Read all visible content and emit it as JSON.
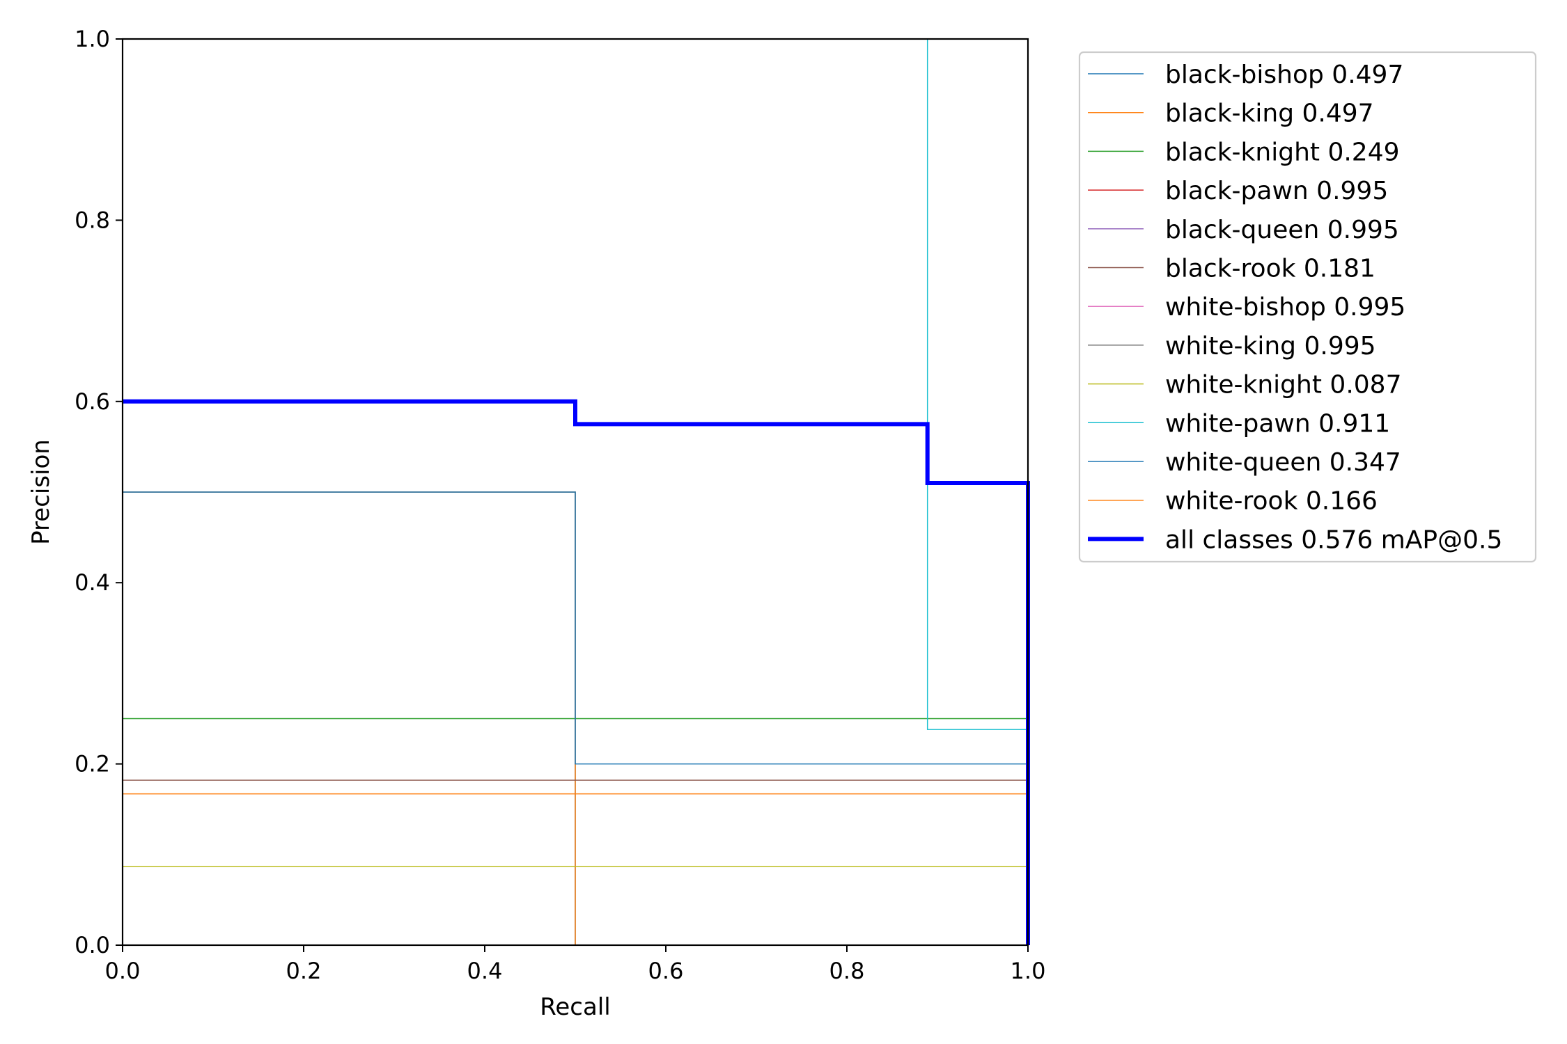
{
  "chart_data": {
    "type": "line",
    "title": "",
    "xlabel": "Recall",
    "ylabel": "Precision",
    "xlim": [
      0,
      1
    ],
    "ylim": [
      0,
      1
    ],
    "xticks": [
      "0.0",
      "0.2",
      "0.4",
      "0.6",
      "0.8",
      "1.0"
    ],
    "yticks": [
      "0.0",
      "0.2",
      "0.4",
      "0.6",
      "0.8",
      "1.0"
    ],
    "grid": false,
    "legend_position": "outside-right-top",
    "series": [
      {
        "name": "black-bishop",
        "ap": "0.497",
        "color": "#1f77b4",
        "width": 1.5,
        "x": [
          0,
          0.5,
          0.5,
          1.0,
          1.0
        ],
        "y": [
          0.5,
          0.5,
          0.0,
          0.0,
          0.0
        ]
      },
      {
        "name": "black-king",
        "ap": "0.497",
        "color": "#ff7f0e",
        "width": 1.5,
        "x": [
          0,
          0.5,
          0.5,
          1.0,
          1.0
        ],
        "y": [
          0.5,
          0.5,
          0.0,
          0.0,
          0.0
        ]
      },
      {
        "name": "black-knight",
        "ap": "0.249",
        "color": "#2ca02c",
        "width": 1.5,
        "x": [
          0,
          1.0,
          1.0
        ],
        "y": [
          0.25,
          0.25,
          0.0
        ]
      },
      {
        "name": "black-pawn",
        "ap": "0.995",
        "color": "#d62728",
        "width": 1.5,
        "x": [
          0,
          1.0,
          1.0
        ],
        "y": [
          1.0,
          1.0,
          0.0
        ]
      },
      {
        "name": "black-queen",
        "ap": "0.995",
        "color": "#9467bd",
        "width": 1.5,
        "x": [
          0,
          1.0,
          1.0
        ],
        "y": [
          1.0,
          1.0,
          0.0
        ]
      },
      {
        "name": "black-rook",
        "ap": "0.181",
        "color": "#8c564b",
        "width": 1.5,
        "x": [
          0,
          1.0,
          1.0
        ],
        "y": [
          0.182,
          0.182,
          0.0
        ]
      },
      {
        "name": "white-bishop",
        "ap": "0.995",
        "color": "#e377c2",
        "width": 1.5,
        "x": [
          0,
          1.0,
          1.0
        ],
        "y": [
          1.0,
          1.0,
          0.0
        ]
      },
      {
        "name": "white-king",
        "ap": "0.995",
        "color": "#7f7f7f",
        "width": 1.5,
        "x": [
          0,
          1.0,
          1.0
        ],
        "y": [
          1.0,
          1.0,
          0.0
        ]
      },
      {
        "name": "white-knight",
        "ap": "0.087",
        "color": "#bcbd22",
        "width": 1.5,
        "x": [
          0,
          1.0,
          1.0
        ],
        "y": [
          0.087,
          0.087,
          0.0
        ]
      },
      {
        "name": "white-pawn",
        "ap": "0.911",
        "color": "#17becf",
        "width": 1.5,
        "x": [
          0,
          0.889,
          0.889,
          1.0,
          1.0
        ],
        "y": [
          1.0,
          1.0,
          0.238,
          0.238,
          0.0
        ]
      },
      {
        "name": "white-queen",
        "ap": "0.347",
        "color": "#1f77b4",
        "width": 1.5,
        "x": [
          0,
          0.5,
          0.5,
          1.0,
          1.0
        ],
        "y": [
          0.5,
          0.5,
          0.2,
          0.2,
          0.0
        ]
      },
      {
        "name": "white-rook",
        "ap": "0.166",
        "color": "#ff7f0e",
        "width": 1.5,
        "x": [
          0,
          1.0,
          1.0
        ],
        "y": [
          0.167,
          0.167,
          0.0
        ]
      },
      {
        "name": "all classes",
        "ap": "0.576",
        "suffix": " mAP@0.5",
        "color": "#0000ff",
        "width": 6,
        "x": [
          0,
          0.5,
          0.5,
          0.889,
          0.889,
          1.0,
          1.0
        ],
        "y": [
          0.6,
          0.6,
          0.575,
          0.575,
          0.51,
          0.51,
          0.0
        ]
      }
    ]
  }
}
